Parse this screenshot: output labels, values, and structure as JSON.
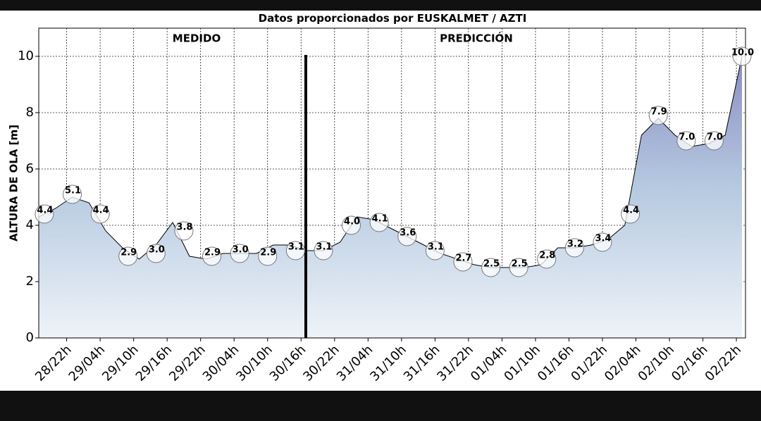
{
  "chart_data": {
    "type": "area",
    "title": "Datos proporcionados por EUSKALMET / AZTI",
    "ylabel": "ALTURA DE OLA [m]",
    "annotations": [
      "MEDIDO",
      "PREDICCIÓN"
    ],
    "ylim": [
      0,
      11
    ],
    "yticks": [
      0,
      2,
      4,
      6,
      8,
      10
    ],
    "xlim": [
      "28/17h",
      "02/23h"
    ],
    "xticks": [
      "28/22h",
      "29/04h",
      "29/10h",
      "29/16h",
      "29/22h",
      "30/04h",
      "30/10h",
      "30/16h",
      "30/22h",
      "31/04h",
      "31/10h",
      "31/16h",
      "31/22h",
      "01/04h",
      "01/10h",
      "01/16h",
      "01/22h",
      "02/04h",
      "02/10h",
      "02/16h",
      "02/22h"
    ],
    "grid": true,
    "x": [
      "28/17h",
      "28/20h",
      "28/23h",
      "29/02h",
      "29/05h",
      "29/08h",
      "29/11h",
      "29/14h",
      "29/17h",
      "29/20h",
      "29/23h",
      "30/02h",
      "30/05h",
      "30/08h",
      "30/11h",
      "30/14h",
      "30/17h",
      "30/20h",
      "30/23h",
      "31/02h",
      "31/05h",
      "31/08h",
      "31/11h",
      "31/14h",
      "31/17h",
      "31/20h",
      "31/23h",
      "01/02h",
      "01/05h",
      "01/08h",
      "01/11h",
      "01/14h",
      "01/17h",
      "01/20h",
      "01/23h",
      "02/02h",
      "02/05h",
      "02/08h",
      "02/11h",
      "02/14h",
      "02/17h",
      "02/20h",
      "02/23h"
    ],
    "series": [
      {
        "color": "#000000",
        "values": [
          4.3,
          4.6,
          5.0,
          4.8,
          3.8,
          3.2,
          2.8,
          3.3,
          4.1,
          2.9,
          2.8,
          3.0,
          3.0,
          3.0,
          3.3,
          3.3,
          3.1,
          3.1,
          3.4,
          4.3,
          4.2,
          3.9,
          3.6,
          3.3,
          3.0,
          2.8,
          2.6,
          2.5,
          2.5,
          2.5,
          2.6,
          3.2,
          3.2,
          3.3,
          3.5,
          4.0,
          7.2,
          7.8,
          7.2,
          6.8,
          6.9,
          7.2,
          10.0
        ]
      }
    ],
    "labels": {
      "x": [
        "28/18h",
        "28/23h",
        "29/04h",
        "29/09h",
        "29/14h",
        "29/19h",
        "30/00h",
        "30/05h",
        "30/10h",
        "30/15h",
        "30/20h",
        "31/01h",
        "31/06h",
        "31/11h",
        "31/16h",
        "31/21h",
        "01/02h",
        "01/07h",
        "01/12h",
        "01/17h",
        "01/22h",
        "02/03h",
        "02/08h",
        "02/13h",
        "02/18h",
        "02/23h"
      ],
      "values": [
        4.4,
        5.1,
        4.4,
        2.9,
        3.0,
        3.8,
        2.9,
        3.0,
        2.9,
        3.1,
        3.1,
        4.0,
        4.1,
        3.6,
        3.1,
        2.7,
        2.5,
        2.5,
        2.8,
        3.2,
        3.4,
        4.4,
        7.9,
        7.0,
        7.0,
        10.0
      ],
      "value_labels": [
        "4.4",
        "5.1",
        "4.4",
        "2.9",
        "3.0",
        "3.8",
        "2.9",
        "3.0",
        "2.9",
        "3.1",
        "3.1",
        "4.0",
        "4.1",
        "3.6",
        "3.1",
        "2.7",
        "2.5",
        "2.5",
        "2.8",
        "3.2",
        "3.4",
        "4.4",
        "7.9",
        "7.0",
        "7.0",
        "10.0"
      ]
    }
  }
}
